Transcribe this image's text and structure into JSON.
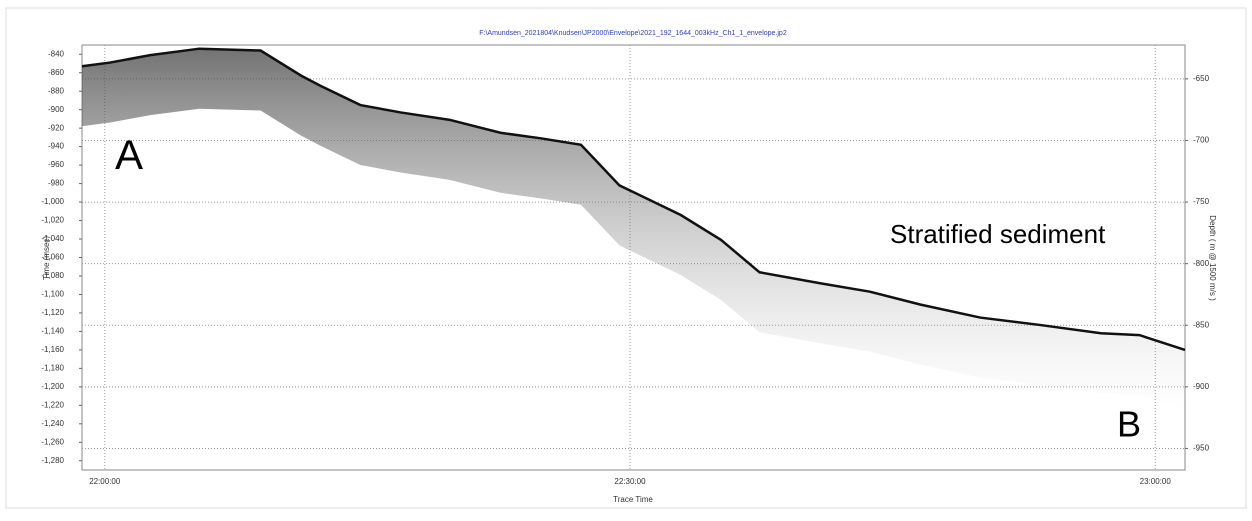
{
  "chart_data": {
    "type": "line",
    "title": "F:\\Amundsen_2021804\\Knudsen\\JP2000\\Envelope\\2021_192_1644_003kHz_Ch1_1_envelope.jp2",
    "x_label": "Trace Time",
    "y_label": "Time (msec)",
    "y2_label": "Depth ( m @ 1500 m/s )",
    "annotations": [
      "A",
      "B",
      "Stratified sediment"
    ],
    "xlim": [
      1318.7,
      1381.7
    ],
    "xticks": [
      {
        "value": 1320,
        "label": "22:00:00"
      },
      {
        "value": 1350,
        "label": "22:30:00"
      },
      {
        "value": 1380,
        "label": "23:00:00"
      }
    ],
    "ylim": [
      -1290,
      -830
    ],
    "yticks": [
      -840,
      -860,
      -880,
      -900,
      -920,
      -940,
      -960,
      -980,
      {
        "value": -1000,
        "label": "-1,000"
      },
      {
        "value": -1020,
        "label": "-1,020"
      },
      {
        "value": -1040,
        "label": "-1,040"
      },
      {
        "value": -1060,
        "label": "-1,060"
      },
      {
        "value": -1080,
        "label": "-1,080"
      },
      {
        "value": -1100,
        "label": "-1,100"
      },
      {
        "value": -1120,
        "label": "-1,120"
      },
      {
        "value": -1140,
        "label": "-1,140"
      },
      {
        "value": -1160,
        "label": "-1,160"
      },
      {
        "value": -1180,
        "label": "-1,180"
      },
      {
        "value": -1200,
        "label": "-1,200"
      },
      {
        "value": -1220,
        "label": "-1,220"
      },
      {
        "value": -1240,
        "label": "-1,240"
      },
      {
        "value": -1260,
        "label": "-1,260"
      },
      {
        "value": -1280,
        "label": "-1,280"
      }
    ],
    "y2lim": [
      -967.5,
      -622.5
    ],
    "y2ticks": [
      -650,
      -700,
      -750,
      -800,
      -850,
      -900,
      -950
    ],
    "grid": true,
    "series": [
      {
        "color": "#111111",
        "x": [
          1318.7,
          1320.3,
          1322.6,
          1325.4,
          1328.9,
          1331.2,
          1332.3,
          1334.6,
          1336.9,
          1339.7,
          1342.6,
          1344.9,
          1347.2,
          1349.4,
          1352.9,
          1355.2,
          1357.4,
          1360.9,
          1363.7,
          1366.6,
          1370.0,
          1373.4,
          1376.9,
          1379.1,
          1381.7
        ],
        "values": [
          -853,
          -849,
          -841,
          -834,
          -836,
          -863,
          -874,
          -895,
          -903,
          -911,
          -925,
          -931,
          -938,
          -982,
          -1014,
          -1041,
          -1076,
          -1088,
          -1097,
          -1111,
          -1125,
          -1133,
          -1142,
          -1144,
          -1160
        ]
      }
    ]
  }
}
